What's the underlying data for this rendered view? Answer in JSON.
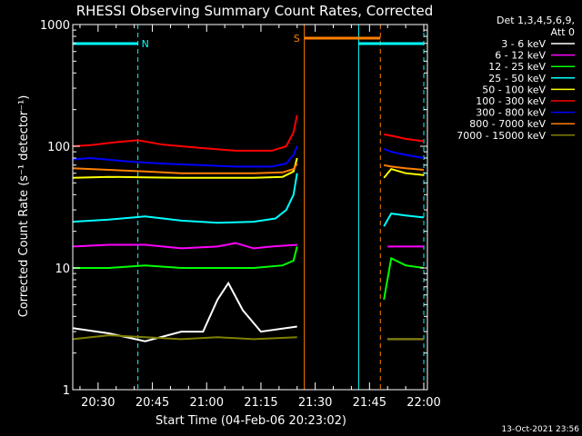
{
  "chart_data": {
    "type": "line",
    "title": "RHESSI Observing Summary Count Rates, Corrected",
    "xlabel": "Start Time (04-Feb-06 20:23:02)",
    "ylabel": "Corrected Count Rate (s⁻¹ detector⁻¹)",
    "ylog": true,
    "ylim": [
      1,
      1000
    ],
    "xlim_minutes_after_2023": [
      0,
      98
    ],
    "x_ticks": [
      {
        "label": "20:30",
        "t": 7
      },
      {
        "label": "20:45",
        "t": 22
      },
      {
        "label": "21:00",
        "t": 37
      },
      {
        "label": "21:15",
        "t": 52
      },
      {
        "label": "21:30",
        "t": 67
      },
      {
        "label": "21:45",
        "t": 82
      },
      {
        "label": "22:00",
        "t": 97
      }
    ],
    "y_ticks": [
      {
        "label": "1",
        "v": 1
      },
      {
        "label": "10",
        "v": 10
      },
      {
        "label": "100",
        "v": 100
      },
      {
        "label": "1000",
        "v": 1000
      }
    ],
    "legend_header": [
      "Det 1,3,4,5,6,9,",
      "Att 0"
    ],
    "series": [
      {
        "name": "3 - 6 keV",
        "color": "#ffffff",
        "segments": [
          {
            "t": [
              0,
              10,
              20,
              30,
              36,
              40,
              43,
              47,
              52,
              62
            ],
            "v": [
              3.2,
              2.9,
              2.5,
              3.0,
              3.0,
              5.5,
              7.5,
              4.5,
              3.0,
              3.3
            ]
          },
          {
            "t": [
              87,
              97
            ],
            "v": [
              2.6,
              2.6
            ]
          }
        ]
      },
      {
        "name": "6 - 12 keV",
        "color": "#ff00ff",
        "segments": [
          {
            "t": [
              0,
              10,
              20,
              30,
              40,
              45,
              50,
              55,
              62
            ],
            "v": [
              15.0,
              15.5,
              15.5,
              14.5,
              15.0,
              16.0,
              14.5,
              15.0,
              15.5
            ]
          },
          {
            "t": [
              87,
              97
            ],
            "v": [
              15.0,
              15.0
            ]
          }
        ]
      },
      {
        "name": "12 - 25 keV",
        "color": "#00ff00",
        "segments": [
          {
            "t": [
              0,
              10,
              20,
              30,
              40,
              50,
              58,
              61,
              62
            ],
            "v": [
              10.0,
              10.0,
              10.5,
              10.0,
              10.0,
              10.0,
              10.5,
              11.5,
              15.0
            ]
          },
          {
            "t": [
              86,
              88,
              92,
              97
            ],
            "v": [
              5.5,
              12.0,
              10.5,
              10.0
            ]
          }
        ]
      },
      {
        "name": "25 - 50 keV",
        "color": "#00ffff",
        "segments": [
          {
            "t": [
              0,
              10,
              20,
              30,
              40,
              50,
              56,
              59,
              61,
              62
            ],
            "v": [
              24.0,
              25.0,
              26.5,
              24.5,
              23.5,
              24.0,
              25.5,
              30.0,
              40.0,
              60.0
            ]
          },
          {
            "t": [
              86,
              88,
              92,
              97
            ],
            "v": [
              22.0,
              28.0,
              27.0,
              26.0
            ]
          }
        ]
      },
      {
        "name": "50 - 100 keV",
        "color": "#ffff00",
        "segments": [
          {
            "t": [
              0,
              10,
              20,
              30,
              40,
              50,
              58,
              61,
              62
            ],
            "v": [
              55.0,
              56.0,
              55.5,
              55.0,
              55.0,
              55.0,
              56.0,
              62.0,
              80.0
            ]
          },
          {
            "t": [
              86,
              88,
              92,
              97
            ],
            "v": [
              55.0,
              65.0,
              60.0,
              58.0
            ]
          }
        ]
      },
      {
        "name": "100 - 300 keV",
        "color": "#ff0000",
        "segments": [
          {
            "t": [
              0,
              5,
              12,
              18,
              25,
              35,
              45,
              55,
              59,
              61,
              62
            ],
            "v": [
              100.0,
              102.0,
              108.0,
              112.0,
              103.0,
              97.0,
              92.0,
              92.0,
              100.0,
              130.0,
              180.0
            ]
          },
          {
            "t": [
              86,
              88,
              92,
              97
            ],
            "v": [
              125.0,
              122.0,
              115.0,
              110.0
            ]
          }
        ]
      },
      {
        "name": "300 - 800 keV",
        "color": "#0000ff",
        "segments": [
          {
            "t": [
              0,
              5,
              15,
              25,
              35,
              45,
              55,
              59,
              61,
              62
            ],
            "v": [
              78.0,
              80.0,
              75.0,
              72.0,
              70.0,
              68.0,
              68.0,
              72.0,
              85.0,
              100.0
            ]
          },
          {
            "t": [
              86,
              88,
              92,
              97
            ],
            "v": [
              95.0,
              90.0,
              85.0,
              80.0
            ]
          }
        ]
      },
      {
        "name": "800 - 7000 keV",
        "color": "#ff8000",
        "segments": [
          {
            "t": [
              0,
              10,
              20,
              30,
              40,
              50,
              58,
              61,
              62
            ],
            "v": [
              66.0,
              64.0,
              62.0,
              60.0,
              60.0,
              60.0,
              61.0,
              65.0,
              72.0
            ]
          },
          {
            "t": [
              86,
              88,
              92,
              97
            ],
            "v": [
              70.0,
              68.0,
              66.0,
              64.0
            ]
          }
        ]
      },
      {
        "name": "7000 - 15000 keV",
        "color": "#808000",
        "segments": [
          {
            "t": [
              0,
              10,
              20,
              30,
              40,
              50,
              62
            ],
            "v": [
              2.6,
              2.8,
              2.7,
              2.6,
              2.7,
              2.6,
              2.7
            ]
          },
          {
            "t": [
              87,
              97
            ],
            "v": [
              2.6,
              2.6
            ]
          }
        ]
      }
    ],
    "flag_bars": [
      {
        "label": "N",
        "color": "#00ffff",
        "t_start": 0,
        "t_end": 18
      },
      {
        "label": "S",
        "color": "#ff8000",
        "t_start": 64,
        "t_end": 85
      },
      {
        "label": "",
        "color": "#00ffff",
        "t_start": 79,
        "t_end": 97
      }
    ],
    "markers": [
      {
        "t": 0,
        "color": "#00ffff",
        "style": "solid"
      },
      {
        "t": 18,
        "color": "#00ffff",
        "style": "dashed"
      },
      {
        "t": 64,
        "color": "#ff8000",
        "style": "solid"
      },
      {
        "t": 79,
        "color": "#00ffff",
        "style": "solid"
      },
      {
        "t": 85,
        "color": "#ff8000",
        "style": "dashed"
      },
      {
        "t": 97,
        "color": "#00ffff",
        "style": "dashed"
      }
    ],
    "footer_date": "13-Oct-2021 23:56"
  }
}
